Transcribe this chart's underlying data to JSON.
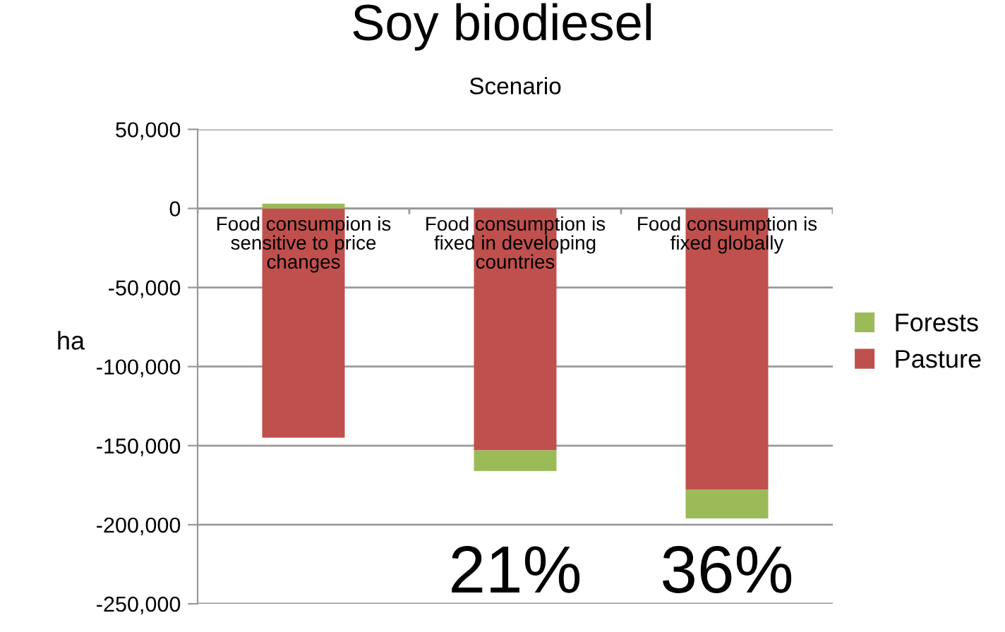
{
  "chart_data": {
    "type": "bar",
    "stacked": true,
    "title": "Soy biodiesel",
    "xlabel": "Scenario",
    "ylabel": "ha",
    "categories": [
      "Food consumpion is sensitive to price changes",
      "Food consumption is fixed in developing countries",
      "Food consumption is fixed globally"
    ],
    "series": [
      {
        "name": "Pasture",
        "color": "#c0504d",
        "values": [
          -145000,
          -153000,
          -178000
        ]
      },
      {
        "name": "Forests",
        "color": "#9bbb59",
        "values": [
          3000,
          -13000,
          -18000
        ]
      }
    ],
    "ylim": [
      -250000,
      50000
    ],
    "yticks": [
      {
        "value": -250000,
        "label": "-250,000"
      },
      {
        "value": -200000,
        "label": "-200,000"
      },
      {
        "value": -150000,
        "label": "-150,000"
      },
      {
        "value": -100000,
        "label": "-100,000"
      },
      {
        "value": -50000,
        "label": "-50,000"
      },
      {
        "value": 0,
        "label": "0"
      },
      {
        "value": 50000,
        "label": "50,000"
      }
    ],
    "grid": "y",
    "legend": "right",
    "annotations": [
      "21%",
      "36%"
    ]
  }
}
